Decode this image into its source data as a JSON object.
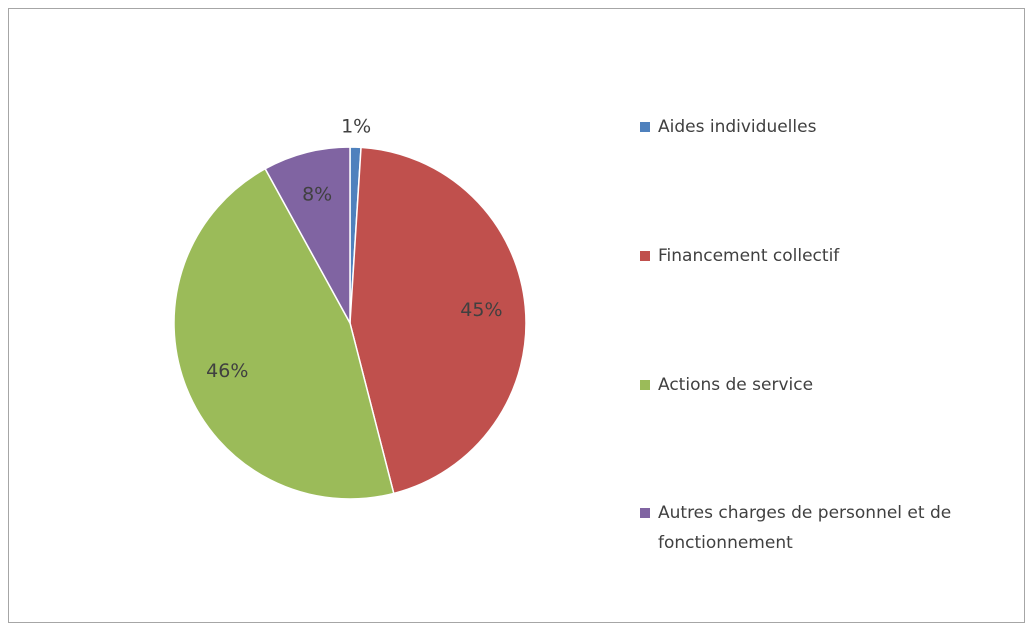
{
  "chart_data": {
    "type": "pie",
    "categories": [
      "Aides individuelles",
      "Financement collectif",
      "Actions de service",
      "Autres charges de personnel et de fonctionnement"
    ],
    "values": [
      1,
      45,
      46,
      8
    ],
    "value_labels": [
      "1%",
      "45%",
      "46%",
      "8%"
    ],
    "colors": [
      "#4f81bd",
      "#c0504d",
      "#9bbb59",
      "#8064a2"
    ],
    "legend": "right"
  }
}
